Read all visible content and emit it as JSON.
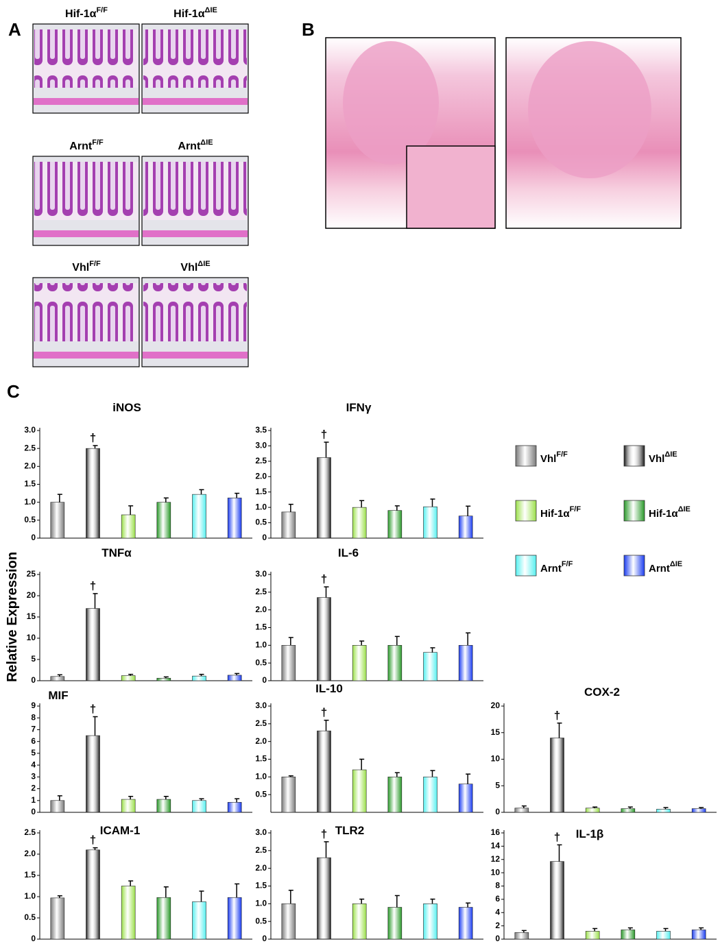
{
  "panel_labels": [
    "A",
    "B",
    "C"
  ],
  "histology": [
    {
      "name": "Hif-1α",
      "sup": "F/F"
    },
    {
      "name": "Hif-1α",
      "sup": "ΔIE"
    },
    {
      "name": "Arnt",
      "sup": "F/F"
    },
    {
      "name": "Arnt",
      "sup": "ΔIE"
    },
    {
      "name": "Vhl",
      "sup": "F/F"
    },
    {
      "name": "Vhl",
      "sup": "ΔIE"
    }
  ],
  "y_label": "Relative Expression",
  "groups": [
    {
      "name": "Vhl",
      "sup": "F/F",
      "color": "#7a7a7a"
    },
    {
      "name": "Vhl",
      "sup": "ΔIE",
      "color": "#111111"
    },
    {
      "name": "Hif-1α",
      "sup": "F/F",
      "color": "#9be04a"
    },
    {
      "name": "Hif-1α",
      "sup": "ΔIE",
      "color": "#2a9a2a"
    },
    {
      "name": "Arnt",
      "sup": "F/F",
      "color": "#55f0f0"
    },
    {
      "name": "Arnt",
      "sup": "ΔIE",
      "color": "#1a3cf0"
    }
  ],
  "chart_data": [
    {
      "type": "bar",
      "title": "iNOS",
      "annotation": "†",
      "values": [
        1.0,
        2.5,
        0.65,
        1.0,
        1.22,
        1.12
      ],
      "errors": [
        0.22,
        0.08,
        0.25,
        0.12,
        0.13,
        0.13
      ],
      "ylim": [
        0,
        3.0
      ],
      "yticks": [
        0,
        {
          "value": 0.5,
          "label": "0.5"
        },
        {
          "value": 1,
          "label": "1.0"
        },
        {
          "value": 1.5,
          "label": "1.5"
        },
        {
          "value": 2,
          "label": "2.0"
        },
        {
          "value": 2.5,
          "label": "2.5"
        },
        {
          "value": 3,
          "label": "3.0"
        }
      ]
    },
    {
      "type": "bar",
      "title": "IFNγ",
      "annotation": "†",
      "values": [
        0.85,
        2.62,
        1.0,
        0.9,
        1.02,
        0.72
      ],
      "errors": [
        0.25,
        0.5,
        0.22,
        0.15,
        0.25,
        0.32
      ],
      "ylim": [
        0,
        3.5
      ],
      "yticks": [
        0,
        {
          "value": 0.5,
          "label": "0.5"
        },
        {
          "value": 1,
          "label": "1.0"
        },
        {
          "value": 1.5,
          "label": "1.5"
        },
        {
          "value": 2,
          "label": "2.0"
        },
        {
          "value": 2.5,
          "label": "2.5"
        },
        {
          "value": 3,
          "label": "3.0"
        },
        {
          "value": 3.5,
          "label": "3.5"
        }
      ]
    },
    {
      "type": "bar",
      "title": "TNFα",
      "annotation": "†",
      "values": [
        1.0,
        17,
        1.2,
        0.6,
        1.1,
        1.3
      ],
      "errors": [
        0.4,
        3.5,
        0.3,
        0.3,
        0.4,
        0.4
      ],
      "ylim": [
        0,
        25
      ],
      "yticks": [
        0,
        5,
        10,
        15,
        20,
        25
      ]
    },
    {
      "type": "bar",
      "title": "IL-6",
      "annotation": "†",
      "values": [
        1.0,
        2.35,
        1.0,
        1.0,
        0.8,
        1.0
      ],
      "errors": [
        0.22,
        0.3,
        0.12,
        0.25,
        0.13,
        0.35
      ],
      "ylim": [
        0,
        3.0
      ],
      "yticks": [
        0,
        {
          "value": 0.5,
          "label": "0.5"
        },
        {
          "value": 1,
          "label": "1.0"
        },
        {
          "value": 1.5,
          "label": "1.5"
        },
        {
          "value": 2,
          "label": "2.0"
        },
        {
          "value": 2.5,
          "label": "2.5"
        },
        {
          "value": 3,
          "label": "3.0"
        }
      ]
    },
    {
      "type": "bar",
      "title": "MIF",
      "annotation": "†",
      "values": [
        1.0,
        6.5,
        1.1,
        1.1,
        1.0,
        0.85
      ],
      "errors": [
        0.4,
        1.6,
        0.25,
        0.25,
        0.15,
        0.3
      ],
      "ylim": [
        0,
        9
      ],
      "yticks": [
        0,
        1,
        2,
        3,
        4,
        5,
        6,
        7,
        8,
        9
      ]
    },
    {
      "type": "bar",
      "title": "IL-10",
      "annotation": "†",
      "values": [
        1.0,
        2.3,
        1.2,
        1.0,
        1.0,
        0.8
      ],
      "errors": [
        0.03,
        0.3,
        0.3,
        0.12,
        0.18,
        0.28
      ],
      "ylim": [
        0,
        3.0
      ],
      "yticks": [
        {
          "value": 0.5,
          "label": "0.5"
        },
        {
          "value": 1,
          "label": "1.0"
        },
        {
          "value": 1.5,
          "label": "1.5"
        },
        {
          "value": 2,
          "label": "2.0"
        },
        {
          "value": 2.5,
          "label": "2.5"
        },
        {
          "value": 3,
          "label": "3.0"
        }
      ]
    },
    {
      "type": "bar",
      "title": "COX-2",
      "annotation": "†",
      "values": [
        0.8,
        14,
        0.8,
        0.7,
        0.6,
        0.7
      ],
      "errors": [
        0.4,
        2.8,
        0.2,
        0.3,
        0.3,
        0.2
      ],
      "ylim": [
        0,
        20
      ],
      "yticks": [
        0,
        5,
        10,
        15,
        20
      ]
    },
    {
      "type": "bar",
      "title": "ICAM-1",
      "annotation": "†",
      "values": [
        0.97,
        2.1,
        1.25,
        0.98,
        0.88,
        0.98
      ],
      "errors": [
        0.05,
        0.05,
        0.12,
        0.25,
        0.25,
        0.32
      ],
      "ylim": [
        0,
        2.5
      ],
      "yticks": [
        0,
        {
          "value": 0.5,
          "label": "0.5"
        },
        {
          "value": 1,
          "label": "1.0"
        },
        {
          "value": 1.5,
          "label": "1.5"
        },
        {
          "value": 2,
          "label": "2.0"
        },
        {
          "value": 2.5,
          "label": "2.5"
        }
      ]
    },
    {
      "type": "bar",
      "title": "TLR2",
      "annotation": "†",
      "values": [
        1.0,
        2.3,
        1.0,
        0.9,
        1.0,
        0.9
      ],
      "errors": [
        0.38,
        0.45,
        0.13,
        0.33,
        0.13,
        0.12
      ],
      "ylim": [
        0,
        3.0
      ],
      "yticks": [
        0,
        {
          "value": 0.5,
          "label": "0.5"
        },
        {
          "value": 1,
          "label": "1.0"
        },
        {
          "value": 1.5,
          "label": "1.5"
        },
        {
          "value": 2,
          "label": "2.0"
        },
        {
          "value": 2.5,
          "label": "2.5"
        },
        {
          "value": 3,
          "label": "3.0"
        }
      ]
    },
    {
      "type": "bar",
      "title": "IL-1β",
      "annotation": "†",
      "values": [
        1.0,
        11.7,
        1.2,
        1.4,
        1.2,
        1.4
      ],
      "errors": [
        0.3,
        2.5,
        0.4,
        0.3,
        0.4,
        0.3
      ],
      "ylim": [
        0,
        16
      ],
      "yticks": [
        0,
        2,
        4,
        6,
        8,
        10,
        12,
        14,
        16
      ]
    }
  ]
}
